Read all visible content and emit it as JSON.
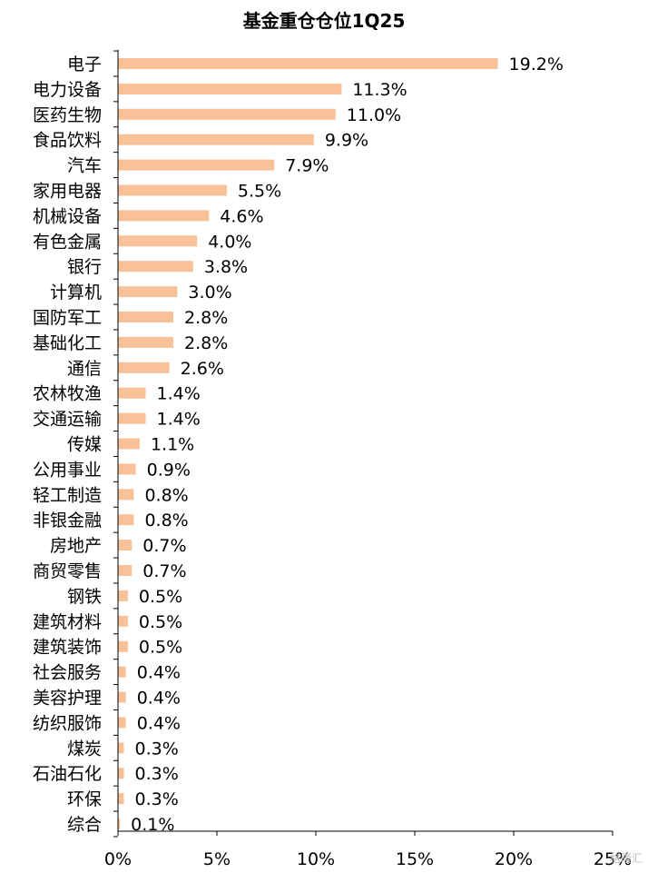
{
  "chart_data": {
    "type": "bar",
    "orientation": "horizontal",
    "title": "基金重仓仓位1Q25",
    "categories": [
      "电子",
      "电力设备",
      "医药生物",
      "食品饮料",
      "汽车",
      "家用电器",
      "机械设备",
      "有色金属",
      "银行",
      "计算机",
      "国防军工",
      "基础化工",
      "通信",
      "农林牧渔",
      "交通运输",
      "传媒",
      "公用事业",
      "轻工制造",
      "非银金融",
      "房地产",
      "商贸零售",
      "钢铁",
      "建筑材料",
      "建筑装饰",
      "社会服务",
      "美容护理",
      "纺织服饰",
      "煤炭",
      "石油石化",
      "环保",
      "综合"
    ],
    "values": [
      19.2,
      11.3,
      11.0,
      9.9,
      7.9,
      5.5,
      4.6,
      4.0,
      3.8,
      3.0,
      2.8,
      2.8,
      2.6,
      1.4,
      1.4,
      1.1,
      0.9,
      0.8,
      0.8,
      0.7,
      0.7,
      0.5,
      0.5,
      0.5,
      0.4,
      0.4,
      0.4,
      0.3,
      0.3,
      0.3,
      0.1
    ],
    "value_labels": [
      "19.2%",
      "11.3%",
      "11.0%",
      "9.9%",
      "7.9%",
      "5.5%",
      "4.6%",
      "4.0%",
      "3.8%",
      "3.0%",
      "2.8%",
      "2.8%",
      "2.6%",
      "1.4%",
      "1.4%",
      "1.1%",
      "0.9%",
      "0.8%",
      "0.8%",
      "0.7%",
      "0.7%",
      "0.5%",
      "0.5%",
      "0.5%",
      "0.4%",
      "0.4%",
      "0.4%",
      "0.3%",
      "0.3%",
      "0.3%",
      "0.1%"
    ],
    "xlim": [
      0,
      25
    ],
    "xticks": [
      0,
      5,
      10,
      15,
      20,
      25
    ],
    "xtick_labels": [
      "0%",
      "5%",
      "10%",
      "15%",
      "20%",
      "25%"
    ],
    "xlabel": "",
    "ylabel": "",
    "grid": false,
    "bar_color": "#F8C198"
  },
  "watermark": "格隆汇"
}
